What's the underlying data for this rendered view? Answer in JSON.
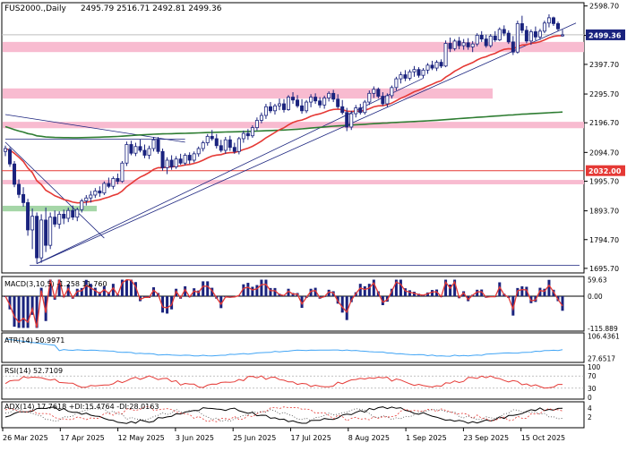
{
  "chart_data": {
    "type": "candlestick",
    "symbol_label": "FUS2000.,Daily",
    "ohlc_label": "2495.79 2516.71 2492.81 2499.36",
    "x_labels": [
      "26 Mar 2025",
      "17 Apr 2025",
      "12 May 2025",
      "3 Jun 2025",
      "25 Jun 2025",
      "17 Jul 2025",
      "8 Aug 2025",
      "1 Sep 2025",
      "23 Sep 2025",
      "15 Oct 2025"
    ],
    "price_ticks": [
      2598.7,
      2497.6,
      2397.7,
      2295.7,
      2196.7,
      2094.7,
      1995.7,
      1893.7,
      1794.7,
      1695.7
    ],
    "price_tick_labels": [
      "2598.70",
      "2497.60",
      "2397.70",
      "2295.70",
      "2196.70",
      "2094.70",
      "1995.70",
      "1893.70",
      "1794.70",
      "1695.70"
    ],
    "ylim": [
      1680,
      2610
    ],
    "current_price": 2499.36,
    "current_price_label": "2499.36",
    "level_line": 2032.0,
    "level_line_label": "2032.00",
    "resistance_zones": [
      [
        2440,
        2475
      ],
      [
        2280,
        2315
      ],
      [
        2178,
        2200
      ],
      [
        1985,
        2000
      ]
    ],
    "support_zone": [
      1895,
      1905
    ],
    "candles": [
      {
        "o": 2098,
        "h": 2118,
        "l": 2082,
        "c": 2108
      },
      {
        "o": 2105,
        "h": 2112,
        "l": 2045,
        "c": 2055
      },
      {
        "o": 2055,
        "h": 2065,
        "l": 1975,
        "c": 1985
      },
      {
        "o": 1985,
        "h": 2002,
        "l": 1938,
        "c": 1950
      },
      {
        "o": 1950,
        "h": 1975,
        "l": 1908,
        "c": 1922
      },
      {
        "o": 1922,
        "h": 1935,
        "l": 1808,
        "c": 1828
      },
      {
        "o": 1828,
        "h": 1902,
        "l": 1762,
        "c": 1875
      },
      {
        "o": 1875,
        "h": 1888,
        "l": 1712,
        "c": 1732
      },
      {
        "o": 1732,
        "h": 1882,
        "l": 1715,
        "c": 1862
      },
      {
        "o": 1862,
        "h": 1905,
        "l": 1752,
        "c": 1775
      },
      {
        "o": 1775,
        "h": 1888,
        "l": 1762,
        "c": 1872
      },
      {
        "o": 1872,
        "h": 1895,
        "l": 1838,
        "c": 1848
      },
      {
        "o": 1848,
        "h": 1892,
        "l": 1832,
        "c": 1882
      },
      {
        "o": 1882,
        "h": 1898,
        "l": 1848,
        "c": 1868
      },
      {
        "o": 1868,
        "h": 1905,
        "l": 1855,
        "c": 1895
      },
      {
        "o": 1895,
        "h": 1912,
        "l": 1862,
        "c": 1872
      },
      {
        "o": 1872,
        "h": 1905,
        "l": 1858,
        "c": 1898
      },
      {
        "o": 1898,
        "h": 1935,
        "l": 1888,
        "c": 1928
      },
      {
        "o": 1928,
        "h": 1948,
        "l": 1912,
        "c": 1938
      },
      {
        "o": 1938,
        "h": 1962,
        "l": 1922,
        "c": 1948
      },
      {
        "o": 1948,
        "h": 1972,
        "l": 1938,
        "c": 1962
      },
      {
        "o": 1962,
        "h": 1978,
        "l": 1942,
        "c": 1955
      },
      {
        "o": 1955,
        "h": 1995,
        "l": 1948,
        "c": 1988
      },
      {
        "o": 1988,
        "h": 2008,
        "l": 1972,
        "c": 1978
      },
      {
        "o": 1978,
        "h": 2012,
        "l": 1968,
        "c": 2005
      },
      {
        "o": 2005,
        "h": 2022,
        "l": 1985,
        "c": 1995
      },
      {
        "o": 1995,
        "h": 2065,
        "l": 1990,
        "c": 2058
      },
      {
        "o": 2058,
        "h": 2132,
        "l": 2048,
        "c": 2122
      },
      {
        "o": 2122,
        "h": 2135,
        "l": 2085,
        "c": 2092
      },
      {
        "o": 2092,
        "h": 2128,
        "l": 2082,
        "c": 2115
      },
      {
        "o": 2115,
        "h": 2140,
        "l": 2095,
        "c": 2102
      },
      {
        "o": 2102,
        "h": 2122,
        "l": 2075,
        "c": 2085
      },
      {
        "o": 2085,
        "h": 2118,
        "l": 2072,
        "c": 2108
      },
      {
        "o": 2108,
        "h": 2148,
        "l": 2098,
        "c": 2138
      },
      {
        "o": 2138,
        "h": 2148,
        "l": 2090,
        "c": 2098
      },
      {
        "o": 2098,
        "h": 2108,
        "l": 2032,
        "c": 2042
      },
      {
        "o": 2042,
        "h": 2078,
        "l": 2020,
        "c": 2068
      },
      {
        "o": 2068,
        "h": 2085,
        "l": 2035,
        "c": 2045
      },
      {
        "o": 2045,
        "h": 2082,
        "l": 2038,
        "c": 2072
      },
      {
        "o": 2072,
        "h": 2090,
        "l": 2052,
        "c": 2058
      },
      {
        "o": 2058,
        "h": 2092,
        "l": 2050,
        "c": 2085
      },
      {
        "o": 2085,
        "h": 2095,
        "l": 2055,
        "c": 2068
      },
      {
        "o": 2068,
        "h": 2098,
        "l": 2060,
        "c": 2090
      },
      {
        "o": 2090,
        "h": 2115,
        "l": 2080,
        "c": 2108
      },
      {
        "o": 2108,
        "h": 2135,
        "l": 2098,
        "c": 2128
      },
      {
        "o": 2128,
        "h": 2158,
        "l": 2118,
        "c": 2150
      },
      {
        "o": 2150,
        "h": 2172,
        "l": 2135,
        "c": 2142
      },
      {
        "o": 2142,
        "h": 2158,
        "l": 2108,
        "c": 2118
      },
      {
        "o": 2118,
        "h": 2138,
        "l": 2095,
        "c": 2102
      },
      {
        "o": 2102,
        "h": 2148,
        "l": 2090,
        "c": 2138
      },
      {
        "o": 2138,
        "h": 2152,
        "l": 2100,
        "c": 2112
      },
      {
        "o": 2112,
        "h": 2128,
        "l": 2090,
        "c": 2098
      },
      {
        "o": 2098,
        "h": 2148,
        "l": 2088,
        "c": 2142
      },
      {
        "o": 2142,
        "h": 2170,
        "l": 2128,
        "c": 2160
      },
      {
        "o": 2160,
        "h": 2175,
        "l": 2138,
        "c": 2152
      },
      {
        "o": 2152,
        "h": 2188,
        "l": 2145,
        "c": 2180
      },
      {
        "o": 2180,
        "h": 2215,
        "l": 2170,
        "c": 2205
      },
      {
        "o": 2205,
        "h": 2232,
        "l": 2195,
        "c": 2222
      },
      {
        "o": 2222,
        "h": 2262,
        "l": 2210,
        "c": 2252
      },
      {
        "o": 2252,
        "h": 2268,
        "l": 2230,
        "c": 2238
      },
      {
        "o": 2238,
        "h": 2262,
        "l": 2225,
        "c": 2255
      },
      {
        "o": 2255,
        "h": 2280,
        "l": 2240,
        "c": 2262
      },
      {
        "o": 2262,
        "h": 2278,
        "l": 2232,
        "c": 2242
      },
      {
        "o": 2242,
        "h": 2292,
        "l": 2238,
        "c": 2285
      },
      {
        "o": 2285,
        "h": 2302,
        "l": 2262,
        "c": 2275
      },
      {
        "o": 2275,
        "h": 2292,
        "l": 2248,
        "c": 2255
      },
      {
        "o": 2255,
        "h": 2278,
        "l": 2228,
        "c": 2238
      },
      {
        "o": 2238,
        "h": 2275,
        "l": 2230,
        "c": 2268
      },
      {
        "o": 2268,
        "h": 2295,
        "l": 2250,
        "c": 2285
      },
      {
        "o": 2285,
        "h": 2298,
        "l": 2262,
        "c": 2272
      },
      {
        "o": 2272,
        "h": 2285,
        "l": 2248,
        "c": 2258
      },
      {
        "o": 2258,
        "h": 2290,
        "l": 2245,
        "c": 2282
      },
      {
        "o": 2282,
        "h": 2305,
        "l": 2270,
        "c": 2298
      },
      {
        "o": 2298,
        "h": 2310,
        "l": 2268,
        "c": 2278
      },
      {
        "o": 2278,
        "h": 2295,
        "l": 2245,
        "c": 2252
      },
      {
        "o": 2252,
        "h": 2275,
        "l": 2225,
        "c": 2232
      },
      {
        "o": 2232,
        "h": 2248,
        "l": 2168,
        "c": 2182
      },
      {
        "o": 2182,
        "h": 2238,
        "l": 2172,
        "c": 2228
      },
      {
        "o": 2228,
        "h": 2258,
        "l": 2215,
        "c": 2248
      },
      {
        "o": 2248,
        "h": 2262,
        "l": 2225,
        "c": 2232
      },
      {
        "o": 2232,
        "h": 2275,
        "l": 2225,
        "c": 2268
      },
      {
        "o": 2268,
        "h": 2308,
        "l": 2258,
        "c": 2298
      },
      {
        "o": 2298,
        "h": 2322,
        "l": 2282,
        "c": 2312
      },
      {
        "o": 2312,
        "h": 2318,
        "l": 2280,
        "c": 2288
      },
      {
        "o": 2288,
        "h": 2302,
        "l": 2255,
        "c": 2262
      },
      {
        "o": 2262,
        "h": 2298,
        "l": 2250,
        "c": 2290
      },
      {
        "o": 2290,
        "h": 2325,
        "l": 2280,
        "c": 2318
      },
      {
        "o": 2318,
        "h": 2355,
        "l": 2308,
        "c": 2348
      },
      {
        "o": 2348,
        "h": 2372,
        "l": 2332,
        "c": 2362
      },
      {
        "o": 2362,
        "h": 2378,
        "l": 2340,
        "c": 2350
      },
      {
        "o": 2350,
        "h": 2380,
        "l": 2342,
        "c": 2372
      },
      {
        "o": 2372,
        "h": 2392,
        "l": 2355,
        "c": 2380
      },
      {
        "o": 2380,
        "h": 2388,
        "l": 2352,
        "c": 2360
      },
      {
        "o": 2360,
        "h": 2385,
        "l": 2350,
        "c": 2378
      },
      {
        "o": 2378,
        "h": 2402,
        "l": 2365,
        "c": 2395
      },
      {
        "o": 2395,
        "h": 2410,
        "l": 2378,
        "c": 2385
      },
      {
        "o": 2385,
        "h": 2412,
        "l": 2375,
        "c": 2405
      },
      {
        "o": 2405,
        "h": 2415,
        "l": 2385,
        "c": 2392
      },
      {
        "o": 2392,
        "h": 2480,
        "l": 2388,
        "c": 2470
      },
      {
        "o": 2470,
        "h": 2490,
        "l": 2440,
        "c": 2452
      },
      {
        "o": 2452,
        "h": 2485,
        "l": 2445,
        "c": 2478
      },
      {
        "o": 2478,
        "h": 2492,
        "l": 2450,
        "c": 2462
      },
      {
        "o": 2462,
        "h": 2485,
        "l": 2448,
        "c": 2472
      },
      {
        "o": 2472,
        "h": 2488,
        "l": 2448,
        "c": 2458
      },
      {
        "o": 2458,
        "h": 2478,
        "l": 2440,
        "c": 2468
      },
      {
        "o": 2468,
        "h": 2505,
        "l": 2460,
        "c": 2498
      },
      {
        "o": 2498,
        "h": 2512,
        "l": 2475,
        "c": 2485
      },
      {
        "o": 2485,
        "h": 2500,
        "l": 2455,
        "c": 2462
      },
      {
        "o": 2462,
        "h": 2502,
        "l": 2455,
        "c": 2495
      },
      {
        "o": 2495,
        "h": 2512,
        "l": 2475,
        "c": 2482
      },
      {
        "o": 2482,
        "h": 2525,
        "l": 2478,
        "c": 2518
      },
      {
        "o": 2518,
        "h": 2532,
        "l": 2495,
        "c": 2505
      },
      {
        "o": 2505,
        "h": 2515,
        "l": 2468,
        "c": 2475
      },
      {
        "o": 2475,
        "h": 2495,
        "l": 2430,
        "c": 2440
      },
      {
        "o": 2440,
        "h": 2548,
        "l": 2435,
        "c": 2538
      },
      {
        "o": 2538,
        "h": 2565,
        "l": 2505,
        "c": 2515
      },
      {
        "o": 2515,
        "h": 2530,
        "l": 2470,
        "c": 2478
      },
      {
        "o": 2478,
        "h": 2518,
        "l": 2465,
        "c": 2510
      },
      {
        "o": 2510,
        "h": 2528,
        "l": 2480,
        "c": 2492
      },
      {
        "o": 2492,
        "h": 2520,
        "l": 2482,
        "c": 2512
      },
      {
        "o": 2512,
        "h": 2548,
        "l": 2505,
        "c": 2540
      },
      {
        "o": 2540,
        "h": 2570,
        "l": 2525,
        "c": 2558
      },
      {
        "o": 2558,
        "h": 2562,
        "l": 2530,
        "c": 2538
      },
      {
        "o": 2538,
        "h": 2545,
        "l": 2512,
        "c": 2520
      },
      {
        "o": 2495.79,
        "h": 2516.71,
        "l": 2492.81,
        "c": 2499.36
      }
    ],
    "indicators": {
      "macd": {
        "label": "MACD(3,10,5) -1.258 11.760",
        "tick_labels": [
          "59.63",
          "0.00",
          "-115.889"
        ]
      },
      "atr": {
        "label": "ATR(14) 50.9971",
        "tick_labels": [
          "106.4361",
          "27.6517"
        ]
      },
      "rsi": {
        "label": "RSI(14) 52.7109",
        "tick_labels": [
          "100",
          "70",
          "30",
          "0"
        ]
      },
      "adx": {
        "label": "ADX(14) 17.7618 +DI:15.4764 -DI:28.0163",
        "tick_labels": [
          "4",
          "2"
        ]
      }
    },
    "colors": {
      "bull": "#1a237e",
      "bear": "#1a237e",
      "ma_fast": "#e53935",
      "ma_slow": "#2e7d32",
      "zone_red": "#f8bbd0",
      "zone_green": "#a5d6a7",
      "level_line": "#e53935",
      "trendline": "#1a237e",
      "macd_hist": "#1a237e",
      "macd_signal": "#e53935",
      "atr_line": "#42a5f5",
      "rsi_line": "#e53935"
    }
  }
}
